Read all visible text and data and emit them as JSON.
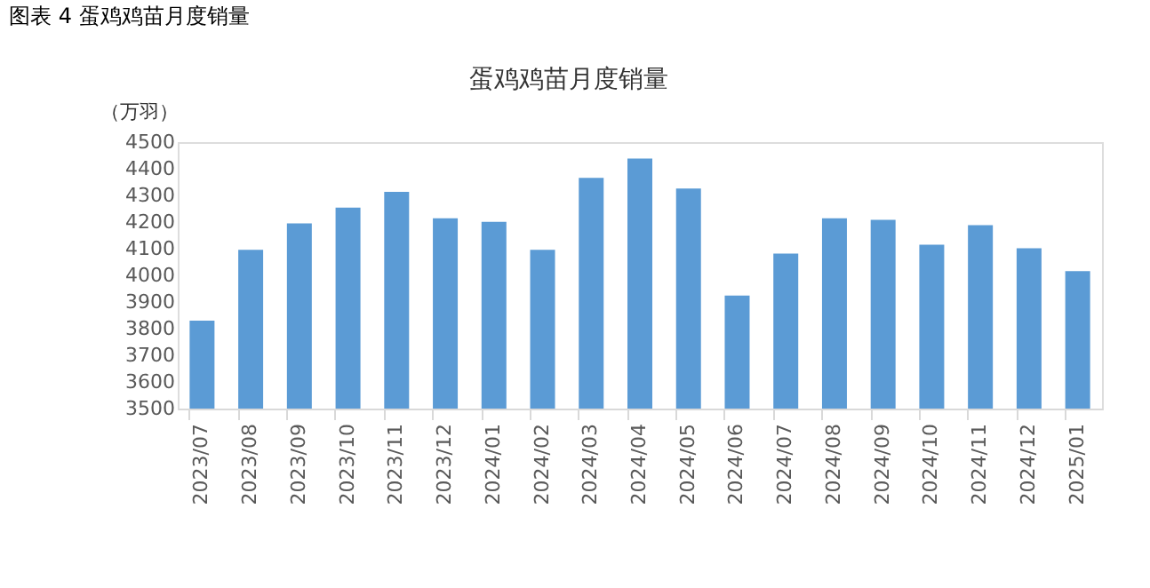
{
  "chart_data": {
    "type": "bar",
    "title": "蛋鸡鸡苗月度销量",
    "ylabel": "（万羽）",
    "annotations": [
      "图表 4  蛋鸡鸡苗月度销量"
    ],
    "categories": [
      "2023/07",
      "2023/08",
      "2023/09",
      "2023/10",
      "2023/11",
      "2023/12",
      "2024/01",
      "2024/02",
      "2024/03",
      "2024/04",
      "2024/05",
      "2024/06",
      "2024/07",
      "2024/08",
      "2024/09",
      "2024/10",
      "2024/11",
      "2024/12",
      "2025/01"
    ],
    "values": [
      3830,
      4096,
      4195,
      4254,
      4313,
      4214,
      4201,
      4096,
      4366,
      4438,
      4326,
      3924,
      4082,
      4214,
      4208,
      4115,
      4188,
      4102,
      4016
    ],
    "color": "#5b9bd5",
    "ylim": [
      3500,
      4500
    ],
    "yticks": [
      3500,
      3600,
      3700,
      3800,
      3900,
      4000,
      4100,
      4200,
      4300,
      4400,
      4500
    ],
    "grid": false
  }
}
